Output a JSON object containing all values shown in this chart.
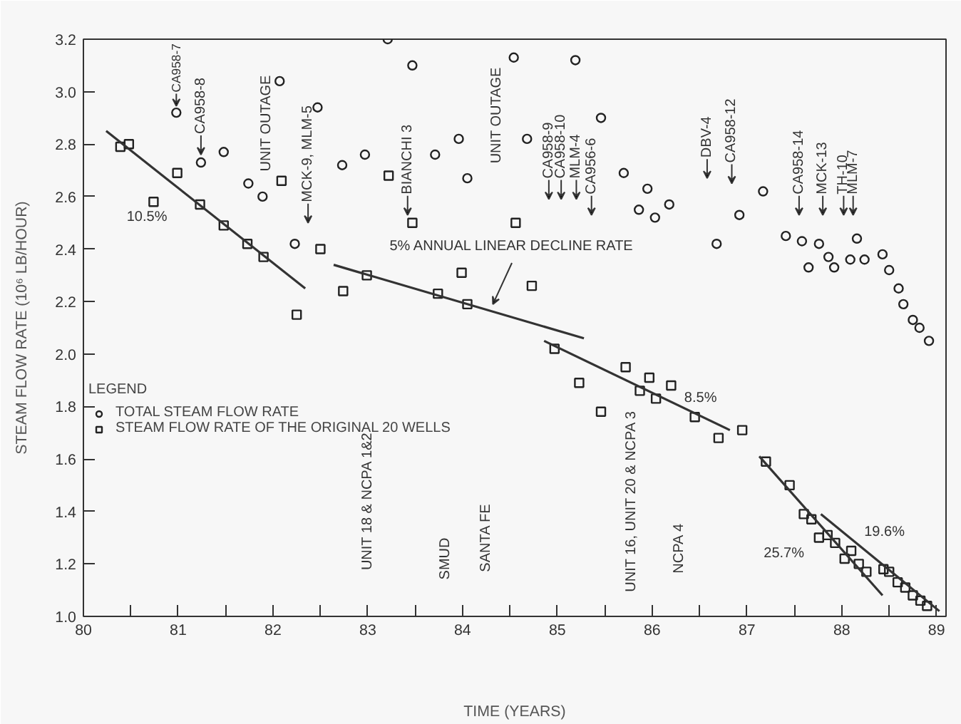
{
  "chart_data": {
    "type": "scatter",
    "xlabel": "TIME (YEARS)",
    "ylabel": "STEAM FLOW RATE (10⁶ LB/HOUR)",
    "legend_title": "LEGEND",
    "legend": "left",
    "grid": false,
    "xlim": [
      80,
      89.1
    ],
    "ylim": [
      1.0,
      3.2
    ],
    "xticks": [
      80,
      {
        "value": 80.5,
        "label": null
      },
      81,
      {
        "value": 81.5,
        "label": null
      },
      82,
      {
        "value": 82.5,
        "label": null
      },
      83,
      {
        "value": 83.5,
        "label": null
      },
      84,
      {
        "value": 84.5,
        "label": null
      },
      85,
      {
        "value": 85.5,
        "label": null
      },
      86,
      {
        "value": 86.5,
        "label": null
      },
      87,
      {
        "value": 87.5,
        "label": null
      },
      88,
      {
        "value": 88.5,
        "label": null
      },
      89
    ],
    "yticks": [
      {
        "value": 1.0,
        "label": "1.0"
      },
      1.2,
      1.4,
      1.6,
      1.8,
      {
        "value": 2.0,
        "label": "2.0"
      },
      2.2,
      2.4,
      2.6,
      2.8,
      {
        "value": 3.0,
        "label": "3.0"
      },
      3.2
    ],
    "series": [
      {
        "name": "TOTAL STEAM FLOW RATE",
        "marker": "circle",
        "color": "#222222",
        "x": [
          80.98,
          81.24,
          81.48,
          81.74,
          81.89,
          82.07,
          82.23,
          82.47,
          82.73,
          82.97,
          83.21,
          83.47,
          83.71,
          83.96,
          84.05,
          84.54,
          84.68,
          85.19,
          85.46,
          85.7,
          85.86,
          85.95,
          86.03,
          86.18,
          86.68,
          86.92,
          87.17,
          87.41,
          87.58,
          87.65,
          87.76,
          87.86,
          87.92,
          88.09,
          88.16,
          88.24,
          88.43,
          88.5,
          88.6,
          88.65,
          88.75,
          88.82,
          88.92
        ],
        "values": [
          2.92,
          2.73,
          2.77,
          2.65,
          2.6,
          3.04,
          2.42,
          2.94,
          2.72,
          2.76,
          3.2,
          3.1,
          2.76,
          2.82,
          2.67,
          3.13,
          2.82,
          3.12,
          2.9,
          2.69,
          2.55,
          2.63,
          2.52,
          2.57,
          2.42,
          2.53,
          2.62,
          2.45,
          2.43,
          2.33,
          2.42,
          2.37,
          2.33,
          2.36,
          2.44,
          2.36,
          2.38,
          2.32,
          2.25,
          2.19,
          2.13,
          2.1,
          2.05
        ]
      },
      {
        "name": "STEAM FLOW RATE OF THE ORIGINAL 20 WELLS",
        "marker": "square",
        "color": "#222222",
        "x": [
          80.39,
          80.48,
          80.74,
          80.99,
          81.23,
          81.48,
          81.73,
          81.9,
          82.09,
          82.25,
          82.5,
          82.74,
          82.99,
          83.22,
          83.47,
          83.74,
          83.99,
          84.05,
          84.56,
          84.73,
          84.97,
          85.23,
          85.46,
          85.72,
          85.87,
          85.97,
          86.04,
          86.2,
          86.45,
          86.7,
          86.95,
          87.2,
          87.45,
          87.6,
          87.68,
          87.76,
          87.85,
          87.93,
          88.03,
          88.1,
          88.18,
          88.26,
          88.44,
          88.5,
          88.59,
          88.67,
          88.75,
          88.83,
          88.9
        ],
        "values": [
          2.79,
          2.8,
          2.58,
          2.69,
          2.57,
          2.49,
          2.42,
          2.37,
          2.66,
          2.15,
          2.4,
          2.24,
          2.3,
          2.68,
          2.5,
          2.23,
          2.31,
          2.19,
          2.5,
          2.26,
          2.02,
          1.89,
          1.78,
          1.95,
          1.86,
          1.91,
          1.83,
          1.88,
          1.76,
          1.68,
          1.71,
          1.59,
          1.5,
          1.39,
          1.37,
          1.3,
          1.31,
          1.28,
          1.22,
          1.25,
          1.2,
          1.17,
          1.18,
          1.17,
          1.13,
          1.11,
          1.08,
          1.06,
          1.04
        ]
      },
      {
        "type": "line",
        "color": "#333333",
        "x": [
          80.24,
          82.34
        ],
        "values": [
          2.85,
          2.25
        ]
      },
      {
        "type": "line",
        "color": "#333333",
        "x": [
          82.64,
          85.28
        ],
        "values": [
          2.34,
          2.06
        ]
      },
      {
        "type": "line",
        "color": "#333333",
        "x": [
          84.86,
          86.82
        ],
        "values": [
          2.05,
          1.71
        ]
      },
      {
        "type": "line",
        "color": "#333333",
        "x": [
          87.13,
          88.43
        ],
        "values": [
          1.61,
          1.08
        ]
      },
      {
        "type": "line",
        "color": "#333333",
        "x": [
          87.78,
          89.03
        ],
        "values": [
          1.39,
          1.02
        ]
      }
    ],
    "annotations": [
      "CA958-7",
      "CA958-8",
      "UNIT OUTAGE",
      "MCK-9, MLM-5",
      "BIANCHI 3",
      "UNIT OUTAGE",
      "CA958-9",
      "CA958-10",
      "MLM-4",
      "CA956-6",
      "DBV-4",
      "CA958-12",
      "CA958-14",
      "MCK-13",
      "TH-10",
      "MLM-7",
      "UNIT 18 & NCPA 1&2",
      "SMUD",
      "SANTA FE",
      "UNIT 16, UNIT 20 & NCPA 3",
      "NCPA 4",
      "10.5%",
      "5% ANNUAL LINEAR DECLINE RATE",
      "8.5%",
      "25.7%",
      "19.6%"
    ]
  }
}
